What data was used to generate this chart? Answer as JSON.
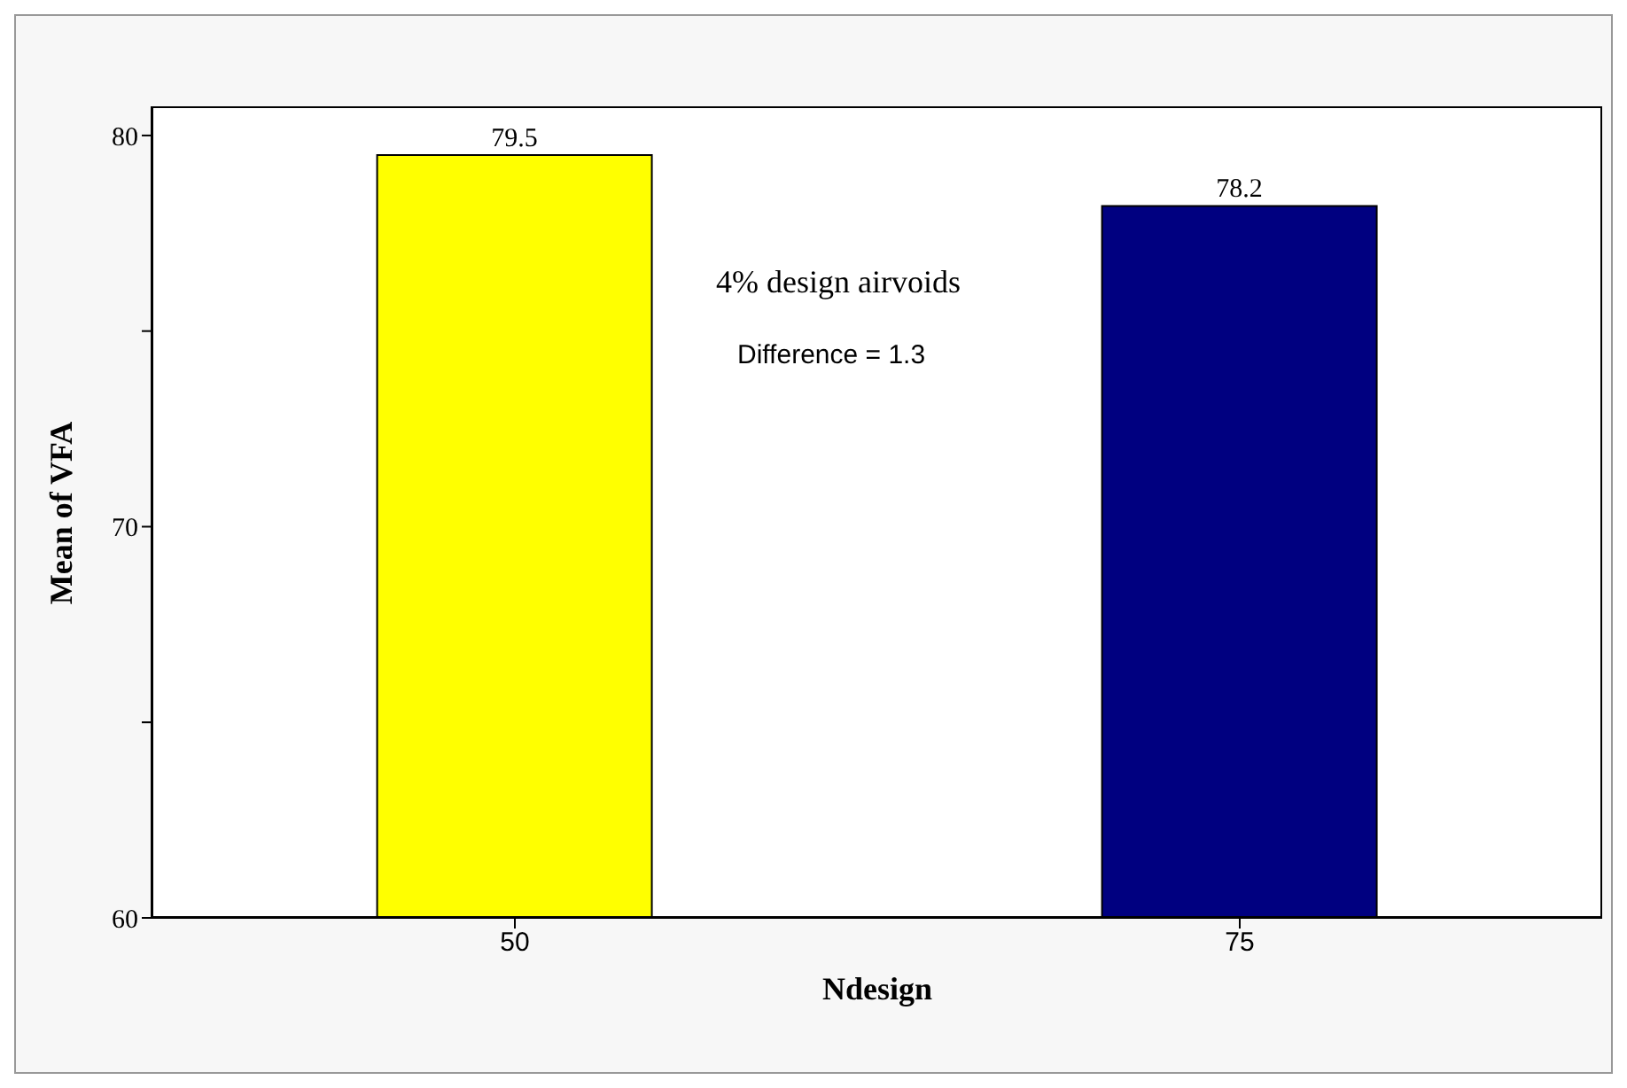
{
  "chart_data": {
    "type": "bar",
    "xlabel": "Ndesign",
    "ylabel": "Mean of VFA",
    "categories": [
      "50",
      "75"
    ],
    "values": [
      79.5,
      78.2
    ],
    "colors": [
      "#ffff00",
      "#000080"
    ],
    "ylim": [
      60,
      80.7
    ],
    "yticks": [
      60,
      {
        "value": 65,
        "label": null
      },
      70,
      {
        "value": 75,
        "label": null
      },
      80
    ],
    "data_labels": true,
    "annotations": [
      "4% design airvoids",
      "Difference = 1.3"
    ]
  }
}
